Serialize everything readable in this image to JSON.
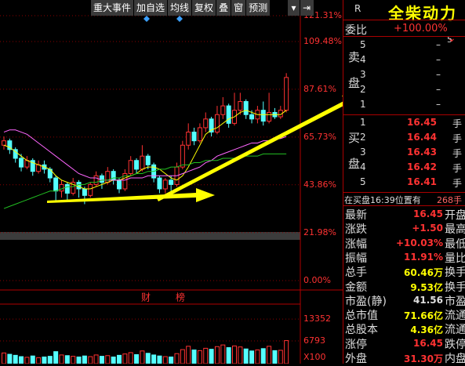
{
  "toolbar": {
    "buttons": [
      "重大事件",
      "加自选",
      "均线",
      "复权",
      "叠",
      "窗",
      "预测"
    ]
  },
  "chart_data": {
    "type": "candlestick",
    "ylim": [
      0,
      121.31
    ],
    "yticks": [
      {
        "value": 121.31,
        "label": "121.31%"
      },
      {
        "value": 109.48,
        "label": "109.48%"
      },
      {
        "value": 87.61,
        "label": "87.61%"
      },
      {
        "value": 65.73,
        "label": "65.73%"
      },
      {
        "value": 43.86,
        "label": "43.86%"
      },
      {
        "value": 21.98,
        "label": "21.98%"
      },
      {
        "value": 0,
        "label": "0.00%"
      }
    ],
    "up_color": "#ff3232",
    "down_color": "#54ffff",
    "candles": {
      "open": [
        62,
        64,
        60,
        56,
        52,
        55,
        50,
        53,
        51,
        47,
        41,
        44,
        40,
        45,
        42,
        39,
        44,
        48,
        45,
        50,
        46,
        42,
        49,
        55,
        51,
        57,
        53,
        47,
        42,
        46,
        44,
        52,
        62,
        68,
        64,
        70,
        74,
        68,
        76,
        80,
        72,
        78,
        82,
        76,
        74,
        78,
        73,
        77,
        75,
        78
      ],
      "close": [
        64,
        60,
        56,
        52,
        55,
        50,
        53,
        51,
        47,
        41,
        44,
        40,
        45,
        42,
        39,
        44,
        48,
        45,
        50,
        46,
        42,
        49,
        55,
        51,
        57,
        53,
        47,
        42,
        46,
        44,
        52,
        62,
        68,
        64,
        70,
        74,
        68,
        76,
        80,
        72,
        78,
        82,
        76,
        74,
        78,
        73,
        77,
        75,
        78,
        93
      ],
      "high": [
        66,
        65,
        61,
        58,
        57,
        56,
        55,
        55,
        52,
        48,
        46,
        45,
        47,
        46,
        43,
        45,
        50,
        49,
        52,
        51,
        47,
        51,
        57,
        56,
        62,
        58,
        54,
        48,
        47,
        48,
        54,
        64,
        72,
        70,
        72,
        77,
        75,
        80,
        84,
        81,
        86,
        86,
        83,
        78,
        80,
        82,
        86,
        79,
        80,
        95
      ],
      "low": [
        60,
        58,
        54,
        50,
        51,
        48,
        49,
        49,
        45,
        36,
        38,
        36,
        39,
        38,
        35,
        38,
        43,
        42,
        44,
        44,
        40,
        41,
        48,
        49,
        50,
        51,
        45,
        40,
        40,
        41,
        43,
        51,
        60,
        62,
        63,
        68,
        66,
        67,
        74,
        70,
        71,
        76,
        74,
        72,
        72,
        71,
        72,
        74,
        74,
        77
      ]
    },
    "ma": [
      {
        "color": "#ffff00",
        "values": [
          62,
          61,
          59,
          57,
          55,
          54,
          53,
          52,
          51,
          48,
          46,
          45,
          44,
          43,
          42,
          42,
          43,
          44,
          45,
          46,
          46,
          47,
          48,
          49,
          51,
          52,
          52,
          51,
          49,
          47,
          46,
          48,
          52,
          57,
          62,
          67,
          69,
          70,
          72,
          74,
          75,
          77,
          78,
          77,
          76,
          76,
          76,
          76,
          76,
          78
        ]
      },
      {
        "color": "#ff66ff",
        "values": [
          68,
          69,
          69,
          68,
          67,
          65,
          63,
          61,
          59,
          57,
          55,
          53,
          51,
          49,
          48,
          47,
          47,
          46,
          46,
          46,
          46,
          46,
          47,
          47,
          47,
          48,
          48,
          48,
          48,
          48,
          48,
          49,
          50,
          51,
          52,
          54,
          55,
          57,
          58,
          59,
          60,
          61,
          62,
          63,
          63,
          64,
          64,
          65,
          65,
          66
        ]
      },
      {
        "color": "#22c022",
        "values": [
          33,
          34,
          35,
          36,
          37,
          38,
          39,
          40,
          41,
          41,
          42,
          43,
          43,
          44,
          44,
          45,
          45,
          46,
          46,
          47,
          47,
          48,
          48,
          49,
          49,
          50,
          50,
          51,
          51,
          52,
          52,
          53,
          53,
          54,
          54,
          55,
          55,
          55,
          56,
          56,
          56,
          57,
          57,
          57,
          57,
          58,
          58,
          58,
          58,
          58
        ]
      }
    ],
    "markers": [
      "财",
      "榜"
    ],
    "volume": {
      "ylim": [
        0,
        19000
      ],
      "yticks": [
        13352,
        6793
      ],
      "unit": "X100",
      "values": [
        3200,
        2800,
        2500,
        2100,
        1900,
        2300,
        1800,
        2000,
        2200,
        3600,
        2600,
        2400,
        2200,
        2000,
        2300,
        2100,
        2600,
        2200,
        2400,
        2000,
        2500,
        2900,
        3300,
        2700,
        3800,
        3100,
        2600,
        2300,
        2100,
        2000,
        3000,
        4200,
        5200,
        4100,
        3900,
        4600,
        4300,
        5100,
        5600,
        4800,
        5300,
        5000,
        4400,
        3800,
        4100,
        4500,
        5200,
        3900,
        4000,
        6900
      ]
    }
  },
  "quote": {
    "flag": "R",
    "name": "全柴动力",
    "weibi_label": "委比",
    "weibi": "+100.00%",
    "depth": "5",
    "sell_label": "卖盘",
    "sell": [
      {
        "level": "5",
        "price": "–"
      },
      {
        "level": "4",
        "price": "–"
      },
      {
        "level": "3",
        "price": "–"
      },
      {
        "level": "2",
        "price": "–"
      },
      {
        "level": "1",
        "price": "–"
      }
    ],
    "buy_label": "买盘",
    "buy": [
      {
        "level": "1",
        "price": "16.45",
        "unit": "手"
      },
      {
        "level": "2",
        "price": "16.44",
        "unit": "手"
      },
      {
        "level": "3",
        "price": "16.43",
        "unit": "手"
      },
      {
        "level": "4",
        "price": "16.42",
        "unit": "手"
      },
      {
        "level": "5",
        "price": "16.41",
        "unit": "手"
      }
    ],
    "queue_note": "在买盘16:39位置有",
    "queue_size": "268手",
    "stats": [
      {
        "label": "最新",
        "value": "16.45",
        "next": "开盘",
        "color": "#ff3232"
      },
      {
        "label": "涨跌",
        "value": "+1.50",
        "next": "最高",
        "color": "#ff3232"
      },
      {
        "label": "涨幅",
        "value": "+10.03%",
        "next": "最低",
        "color": "#ff3232"
      },
      {
        "label": "振幅",
        "value": "11.91%",
        "next": "量比",
        "color": "#ff3232"
      },
      {
        "label": "总手",
        "value": "60.46万",
        "next": "换手",
        "color": "#ffff00"
      },
      {
        "label": "金额",
        "value": "9.53亿",
        "next": "换手",
        "color": "#ffff00"
      },
      {
        "label": "市盈(静)",
        "value": "41.56",
        "next": "市盈",
        "color": "#e0e0e0"
      },
      {
        "label": "总市值",
        "value": "71.66亿",
        "next": "流通",
        "color": "#ffff00"
      },
      {
        "label": "总股本",
        "value": "4.36亿",
        "next": "流通",
        "color": "#ffff00"
      },
      {
        "label": "涨停",
        "value": "16.45",
        "next": "跌停",
        "color": "#ff3232"
      },
      {
        "label": "外盘",
        "value": "31.30万",
        "next": "内盘",
        "color": "#ff3232"
      }
    ]
  }
}
